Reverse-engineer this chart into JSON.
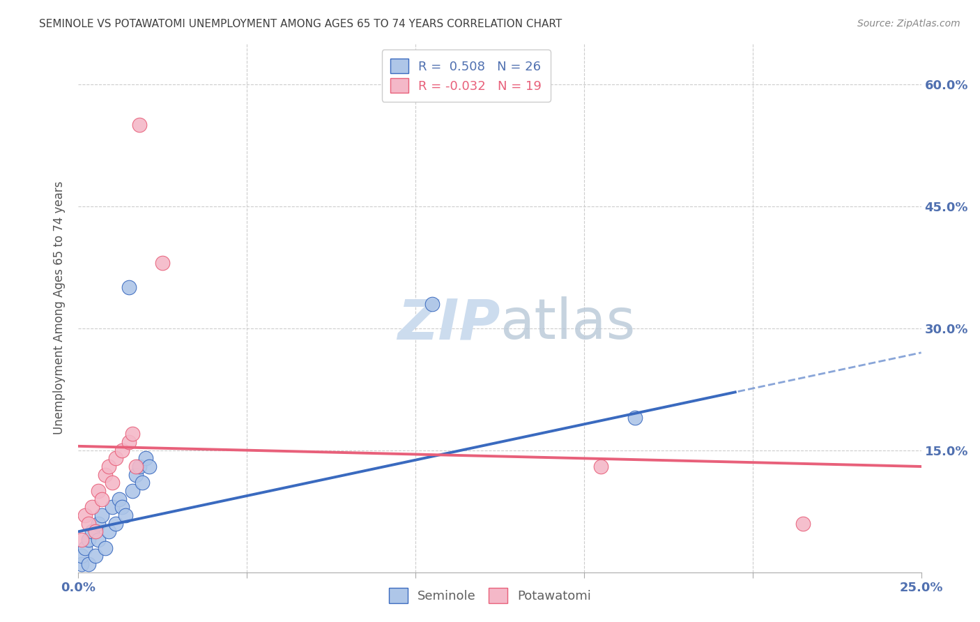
{
  "title": "SEMINOLE VS POTAWATOMI UNEMPLOYMENT AMONG AGES 65 TO 74 YEARS CORRELATION CHART",
  "source": "Source: ZipAtlas.com",
  "ylabel": "Unemployment Among Ages 65 to 74 years",
  "xlim": [
    0,
    0.25
  ],
  "ylim": [
    0,
    0.65
  ],
  "seminole_R": 0.508,
  "seminole_N": 26,
  "potawatomi_R": -0.032,
  "potawatomi_N": 19,
  "seminole_color": "#aec6e8",
  "potawatomi_color": "#f4b8c8",
  "seminole_line_color": "#3a6abf",
  "potawatomi_line_color": "#e8607a",
  "background_color": "#ffffff",
  "grid_color": "#cccccc",
  "title_color": "#404040",
  "axis_label_color": "#555555",
  "right_tick_color": "#5070b0",
  "watermark_color": "#ccdcee",
  "source_color": "#888888",
  "seminole_x": [
    0.001,
    0.001,
    0.002,
    0.003,
    0.003,
    0.004,
    0.005,
    0.006,
    0.006,
    0.007,
    0.008,
    0.009,
    0.009,
    0.01,
    0.01,
    0.011,
    0.012,
    0.013,
    0.014,
    0.016,
    0.017,
    0.018,
    0.019,
    0.02,
    0.105,
    0.16
  ],
  "seminole_y": [
    0.01,
    0.02,
    0.03,
    0.01,
    0.04,
    0.05,
    0.02,
    0.04,
    0.06,
    0.07,
    0.03,
    0.05,
    0.08,
    0.06,
    0.09,
    0.08,
    0.07,
    0.1,
    0.12,
    0.13,
    0.12,
    0.14,
    0.13,
    0.35,
    0.33,
    0.19
  ],
  "potawatomi_x": [
    0.001,
    0.002,
    0.003,
    0.004,
    0.005,
    0.006,
    0.007,
    0.008,
    0.009,
    0.01,
    0.012,
    0.013,
    0.015,
    0.016,
    0.017,
    0.018,
    0.025,
    0.155,
    0.215
  ],
  "potawatomi_y": [
    0.04,
    0.07,
    0.06,
    0.08,
    0.05,
    0.1,
    0.09,
    0.12,
    0.13,
    0.11,
    0.14,
    0.15,
    0.16,
    0.17,
    0.13,
    0.16,
    0.55,
    0.13,
    0.06
  ]
}
